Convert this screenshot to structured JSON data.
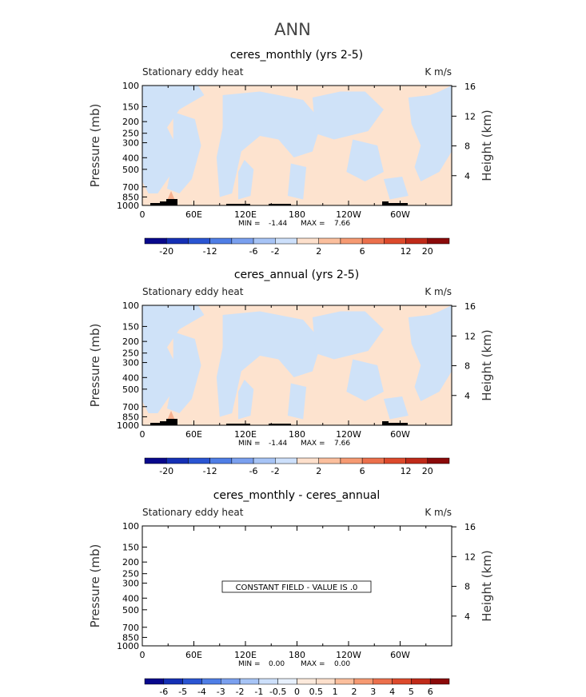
{
  "figure": {
    "title": "ANN"
  },
  "chart_data": [
    {
      "type": "heatmap",
      "title": "ceres_monthly (yrs 2-5)",
      "left_label": "Stationary eddy heat",
      "right_label": "K m/s",
      "ylabel": "Pressure (mb)",
      "ylabel_right": "Height (km)",
      "x_ticks": [
        "0",
        "60E",
        "120E",
        "180",
        "120W",
        "60W"
      ],
      "y_ticks": [
        "100",
        "150",
        "200",
        "250",
        "300",
        "400",
        "500",
        "700",
        "850",
        "1000"
      ],
      "y_ticks_right": [
        "16",
        "12",
        "8",
        "4"
      ],
      "stats": {
        "min_label": "MIN =",
        "min_value": "-1.44",
        "max_label": "MAX =",
        "max_value": "7.66"
      },
      "colorbar": {
        "labels": [
          "-20",
          "-12",
          "-6",
          "-2",
          "2",
          "6",
          "12",
          "20"
        ],
        "colors": [
          "#08088c",
          "#1530b5",
          "#2a55d3",
          "#4f7ee6",
          "#7aa0ef",
          "#a7c4f6",
          "#cde0fb",
          "#fde0cc",
          "#fbbf9d",
          "#f69a72",
          "#ec704c",
          "#dd4a2c",
          "#c02a19",
          "#8b0a0a"
        ]
      },
      "field_colors": {
        "negative": "#cfe2f8",
        "positive": "#fde3cf"
      }
    },
    {
      "type": "heatmap",
      "title": "ceres_annual (yrs 2-5)",
      "left_label": "Stationary eddy heat",
      "right_label": "K m/s",
      "ylabel": "Pressure (mb)",
      "ylabel_right": "Height (km)",
      "x_ticks": [
        "0",
        "60E",
        "120E",
        "180",
        "120W",
        "60W"
      ],
      "y_ticks": [
        "100",
        "150",
        "200",
        "250",
        "300",
        "400",
        "500",
        "700",
        "850",
        "1000"
      ],
      "y_ticks_right": [
        "16",
        "12",
        "8",
        "4"
      ],
      "stats": {
        "min_label": "MIN =",
        "min_value": "-1.44",
        "max_label": "MAX =",
        "max_value": "7.66"
      },
      "colorbar": {
        "labels": [
          "-20",
          "-12",
          "-6",
          "-2",
          "2",
          "6",
          "12",
          "20"
        ],
        "colors": [
          "#08088c",
          "#1530b5",
          "#2a55d3",
          "#4f7ee6",
          "#7aa0ef",
          "#a7c4f6",
          "#cde0fb",
          "#fde0cc",
          "#fbbf9d",
          "#f69a72",
          "#ec704c",
          "#dd4a2c",
          "#c02a19",
          "#8b0a0a"
        ]
      },
      "field_colors": {
        "negative": "#cfe2f8",
        "positive": "#fde3cf"
      }
    },
    {
      "type": "heatmap",
      "title": "ceres_monthly - ceres_annual",
      "left_label": "Stationary eddy heat",
      "right_label": "K m/s",
      "ylabel": "Pressure (mb)",
      "ylabel_right": "Height (km)",
      "x_ticks": [
        "0",
        "60E",
        "120E",
        "180",
        "120W",
        "60W"
      ],
      "y_ticks": [
        "100",
        "150",
        "200",
        "250",
        "300",
        "400",
        "500",
        "700",
        "850",
        "1000"
      ],
      "y_ticks_right": [
        "16",
        "12",
        "8",
        "4"
      ],
      "stats": {
        "min_label": "MIN =",
        "min_value": "0.00",
        "max_label": "MAX =",
        "max_value": "0.00"
      },
      "constant_field_text": "CONSTANT FIELD - VALUE IS .0",
      "colorbar": {
        "labels": [
          "-6",
          "-5",
          "-4",
          "-3",
          "-2",
          "-1",
          "-0.5",
          "0",
          "0.5",
          "1",
          "2",
          "3",
          "4",
          "5",
          "6"
        ],
        "colors": [
          "#08088c",
          "#1530b5",
          "#2a55d3",
          "#4f7ee6",
          "#7aa0ef",
          "#a7c4f6",
          "#cde0fb",
          "#e7f0fc",
          "#fdeadc",
          "#fde0cc",
          "#fbbf9d",
          "#f69a72",
          "#ec704c",
          "#dd4a2c",
          "#c02a19",
          "#8b0a0a"
        ]
      }
    }
  ]
}
